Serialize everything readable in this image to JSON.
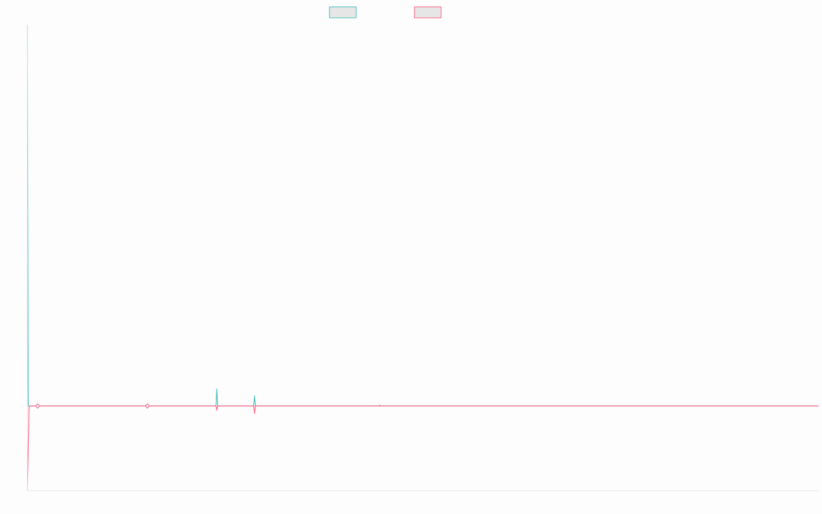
{
  "chart_data": {
    "type": "line",
    "title": "",
    "xlabel": "",
    "ylabel": "",
    "grid": false,
    "legend_position": "top-center",
    "ylim": [
      -100,
      450
    ],
    "series": [
      {
        "color": "#4bc0c0",
        "points": [
          [
            0,
            450
          ],
          [
            1,
            0
          ],
          [
            11,
            0
          ],
          [
            139,
            0
          ],
          [
            220,
            0
          ],
          [
            221,
            20
          ],
          [
            222,
            0
          ],
          [
            264,
            0
          ],
          [
            265,
            12
          ],
          [
            266,
            0
          ],
          [
            410,
            0
          ],
          [
            411,
            1
          ],
          [
            412,
            0
          ],
          [
            923,
            0
          ]
        ],
        "markers": [
          [
            12,
            0
          ],
          [
            140,
            0
          ]
        ]
      },
      {
        "color": "#ff6384",
        "points": [
          [
            0,
            -100
          ],
          [
            2,
            0
          ],
          [
            11,
            0
          ],
          [
            139,
            0
          ],
          [
            220,
            0
          ],
          [
            221,
            -5
          ],
          [
            222,
            0
          ],
          [
            264,
            0
          ],
          [
            265,
            -9
          ],
          [
            266,
            0
          ],
          [
            923,
            0
          ]
        ],
        "markers": [
          [
            12,
            0
          ],
          [
            140,
            0
          ]
        ]
      }
    ],
    "xlim": [
      0,
      923
    ]
  }
}
